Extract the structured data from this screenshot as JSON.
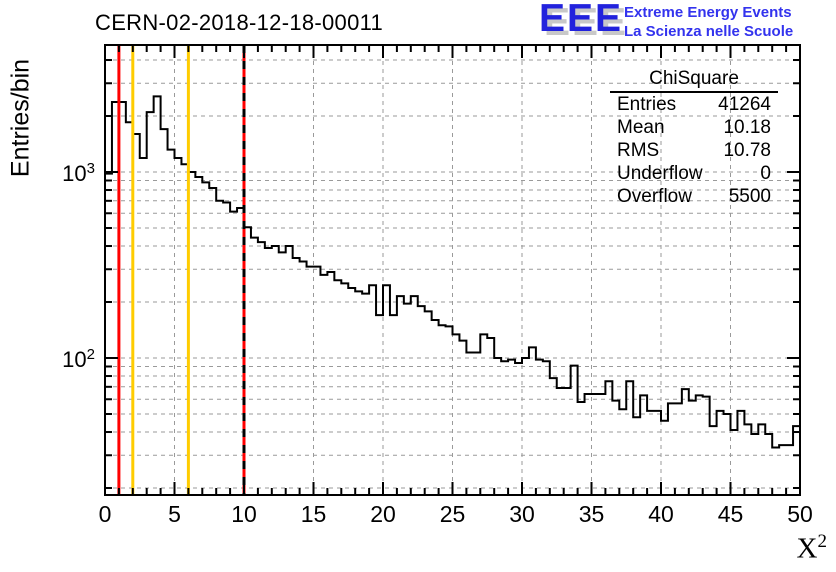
{
  "header": {
    "title": "CERN-02-2018-12-18-00011"
  },
  "logo": {
    "acronym": "EEE",
    "line1": "Extreme Energy Events",
    "line2": "La Scienza nelle Scuole",
    "acronym_color": "#2222dd",
    "text_color": "#3333ee"
  },
  "stats_box": {
    "title": "ChiSquare",
    "rows": [
      {
        "label": "Entries",
        "value": "41264"
      },
      {
        "label": "Mean",
        "value": "10.18"
      },
      {
        "label": "RMS",
        "value": "10.78"
      },
      {
        "label": "Underflow",
        "value": "0"
      },
      {
        "label": "Overflow",
        "value": "5500"
      }
    ]
  },
  "axes": {
    "x": {
      "title_base": "X",
      "title_sup": "2",
      "tick_labels": [
        "0",
        "5",
        "10",
        "15",
        "20",
        "25",
        "30",
        "35",
        "40",
        "45",
        "50"
      ],
      "min": 0,
      "max": 50
    },
    "y": {
      "title": "Entries/bin",
      "tick_labels": [
        {
          "base": "10",
          "sup": "3",
          "value": 1000
        },
        {
          "base": "10",
          "sup": "2",
          "value": 100
        }
      ]
    }
  },
  "chart_data": {
    "type": "bar",
    "style": "step-histogram-outline",
    "title": "CERN-02-2018-12-18-00011",
    "xlabel": "X^2",
    "ylabel": "Entries/bin",
    "xlim": [
      0,
      50
    ],
    "ylim": [
      18,
      4900
    ],
    "y_scale": "log",
    "bin_width": 0.5,
    "bin_start": 0,
    "values": [
      980,
      2380,
      2380,
      1850,
      1600,
      1190,
      2100,
      2550,
      1700,
      1320,
      1190,
      1100,
      1000,
      940,
      880,
      820,
      700,
      685,
      612,
      640,
      505,
      444,
      420,
      390,
      400,
      370,
      400,
      345,
      330,
      310,
      310,
      280,
      290,
      262,
      252,
      238,
      228,
      222,
      246,
      170,
      246,
      170,
      215,
      196,
      215,
      190,
      178,
      160,
      150,
      148,
      134,
      124,
      107,
      107,
      134,
      128,
      100,
      96,
      98,
      94,
      100,
      114,
      98,
      96,
      78,
      69,
      69,
      91,
      58,
      64,
      64,
      64,
      75,
      59,
      53,
      75,
      48,
      63,
      52,
      52,
      46,
      57,
      57,
      68,
      59,
      63,
      62,
      43,
      52,
      50,
      41,
      52,
      44,
      39,
      44,
      39,
      33,
      34,
      34,
      43
    ],
    "line_color": "#000000",
    "grid": {
      "x_major": [
        5,
        10,
        15,
        20,
        25,
        30,
        35,
        40,
        45
      ],
      "y_log_minor": true,
      "style": "dashed",
      "color": "#9a9a9a"
    },
    "marker_lines": [
      {
        "x": 1,
        "color": "#ff0000",
        "style": "solid"
      },
      {
        "x": 2,
        "color": "#ffcc00",
        "style": "solid"
      },
      {
        "x": 6,
        "color": "#ffcc00",
        "style": "solid"
      },
      {
        "x": 10,
        "color": "#ff0000",
        "style": "solid"
      },
      {
        "x": 10,
        "color": "#000000",
        "style": "dashed"
      }
    ],
    "stats": {
      "name": "ChiSquare",
      "entries": 41264,
      "mean": 10.18,
      "rms": 10.78,
      "underflow": 0,
      "overflow": 5500
    },
    "legend_position": "none"
  }
}
